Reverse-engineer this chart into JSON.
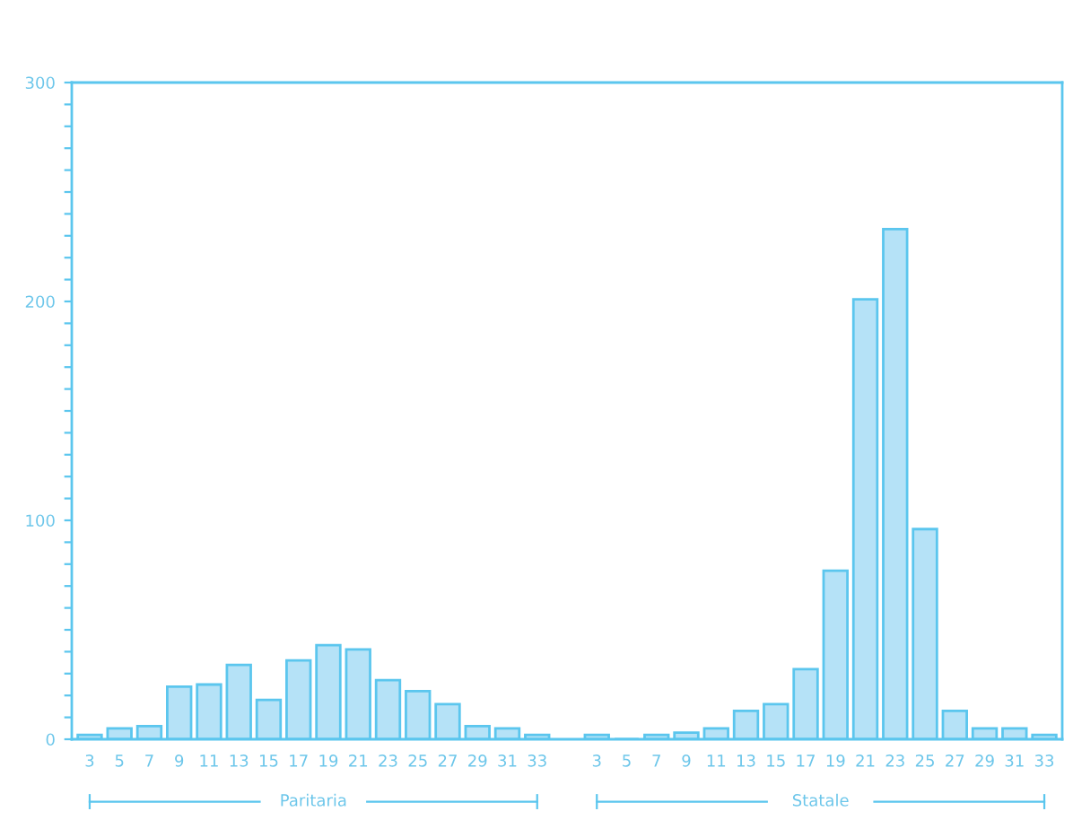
{
  "chart_data": {
    "type": "bar",
    "categories": [
      "3",
      "5",
      "7",
      "9",
      "11",
      "13",
      "15",
      "17",
      "19",
      "21",
      "23",
      "25",
      "27",
      "29",
      "31",
      "33",
      null,
      "3",
      "5",
      "7",
      "9",
      "11",
      "13",
      "15",
      "17",
      "19",
      "21",
      "23",
      "25",
      "27",
      "29",
      "31",
      "33"
    ],
    "values": [
      2,
      5,
      6,
      24,
      25,
      34,
      18,
      36,
      43,
      41,
      27,
      22,
      16,
      6,
      5,
      2,
      null,
      2,
      0,
      2,
      3,
      5,
      13,
      16,
      32,
      77,
      201,
      233,
      96,
      13,
      5,
      5,
      2
    ],
    "color": "#b5e2f7",
    "annotations": [
      "Paritaria",
      "Statale"
    ],
    "ylim": [
      0,
      300
    ],
    "yticks": [
      0,
      {
        "value": 10,
        "label": null
      },
      {
        "value": 20,
        "label": null
      },
      {
        "value": 30,
        "label": null
      },
      {
        "value": 40,
        "label": null
      },
      {
        "value": 50,
        "label": null
      },
      {
        "value": 60,
        "label": null
      },
      {
        "value": 70,
        "label": null
      },
      {
        "value": 80,
        "label": null
      },
      {
        "value": 90,
        "label": null
      },
      100,
      {
        "value": 110,
        "label": null
      },
      {
        "value": 120,
        "label": null
      },
      {
        "value": 130,
        "label": null
      },
      {
        "value": 140,
        "label": null
      },
      {
        "value": 150,
        "label": null
      },
      {
        "value": 160,
        "label": null
      },
      {
        "value": 170,
        "label": null
      },
      {
        "value": 180,
        "label": null
      },
      {
        "value": 190,
        "label": null
      },
      200,
      {
        "value": 210,
        "label": null
      },
      {
        "value": 220,
        "label": null
      },
      {
        "value": 230,
        "label": null
      },
      {
        "value": 240,
        "label": null
      },
      {
        "value": 250,
        "label": null
      },
      {
        "value": 260,
        "label": null
      },
      {
        "value": 270,
        "label": null
      },
      {
        "value": 280,
        "label": null
      },
      {
        "value": 290,
        "label": null
      },
      300
    ],
    "grid": false,
    "legend": false
  }
}
